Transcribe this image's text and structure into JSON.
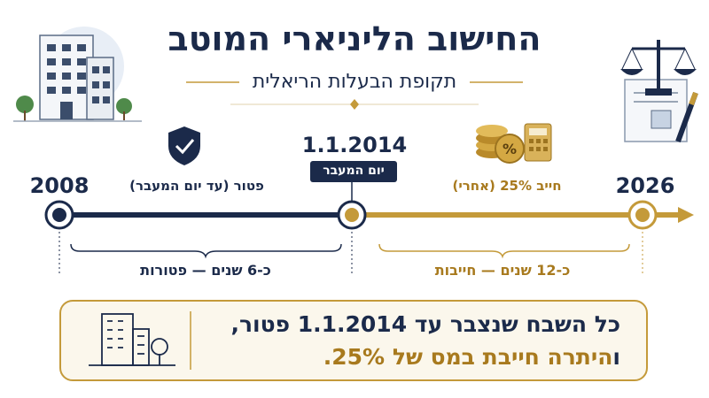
{
  "header": {
    "title": "החישוב הליניארי המוטב",
    "subtitle": "תקופת הבעלות הריאלית"
  },
  "timeline": {
    "points": [
      {
        "label": "2008"
      },
      {
        "label": "1.1.2014",
        "badge": "יום המעבר"
      },
      {
        "label": "2026"
      }
    ],
    "segments": [
      {
        "label": "פטור (עד יום המעבר)",
        "duration": "כ-6 שנים — פטורות"
      },
      {
        "label": "חייב 25% (אחרי)",
        "duration": "כ-12 שנים — חייבות"
      }
    ]
  },
  "callout": {
    "line1": "כל השבח שנצבר עד 1.1.2014 פטור,",
    "line2": [
      "ו",
      "היתרה חייבת במס של 25%."
    ]
  }
}
